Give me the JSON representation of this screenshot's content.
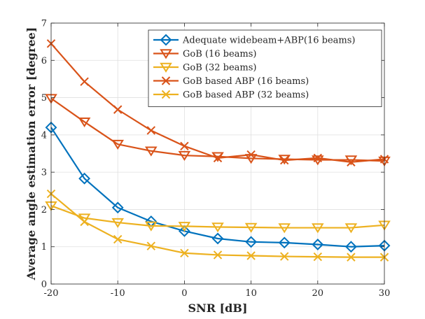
{
  "chart_data": {
    "type": "line",
    "title": "",
    "xlabel": "SNR [dB]",
    "ylabel": "Average angle estimation error [degree]",
    "xlim": [
      -20,
      30
    ],
    "ylim": [
      0,
      7
    ],
    "x_ticks": [
      -20,
      -10,
      0,
      10,
      20,
      30
    ],
    "y_ticks": [
      0,
      1,
      2,
      3,
      4,
      5,
      6,
      7
    ],
    "grid": true,
    "legend_position": "top-right",
    "x": [
      -20,
      -15,
      -10,
      -5,
      0,
      5,
      10,
      15,
      20,
      25,
      30
    ],
    "series": [
      {
        "name": "Adequate widebeam+ABP(16 beams)",
        "color": "#0072BD",
        "marker": "diamond",
        "values": [
          4.2,
          2.83,
          2.05,
          1.68,
          1.42,
          1.22,
          1.13,
          1.11,
          1.06,
          1.0,
          1.03
        ]
      },
      {
        "name": "GoB (16 beams)",
        "color": "#D95319",
        "marker": "triangle-down",
        "values": [
          4.98,
          4.35,
          3.75,
          3.57,
          3.45,
          3.42,
          3.37,
          3.35,
          3.33,
          3.33,
          3.3
        ]
      },
      {
        "name": "GoB (32 beams)",
        "color": "#EDB120",
        "marker": "triangle-down",
        "values": [
          2.1,
          1.77,
          1.65,
          1.56,
          1.55,
          1.53,
          1.52,
          1.51,
          1.51,
          1.51,
          1.58
        ]
      },
      {
        "name": "GoB based ABP (16 beams)",
        "color": "#D95319",
        "marker": "x",
        "values": [
          6.45,
          5.43,
          4.68,
          4.12,
          3.7,
          3.38,
          3.47,
          3.32,
          3.38,
          3.27,
          3.35
        ]
      },
      {
        "name": "GoB based ABP (32 beams)",
        "color": "#EDB120",
        "marker": "x",
        "values": [
          2.42,
          1.67,
          1.2,
          1.02,
          0.83,
          0.78,
          0.76,
          0.74,
          0.73,
          0.72,
          0.72
        ]
      }
    ]
  }
}
